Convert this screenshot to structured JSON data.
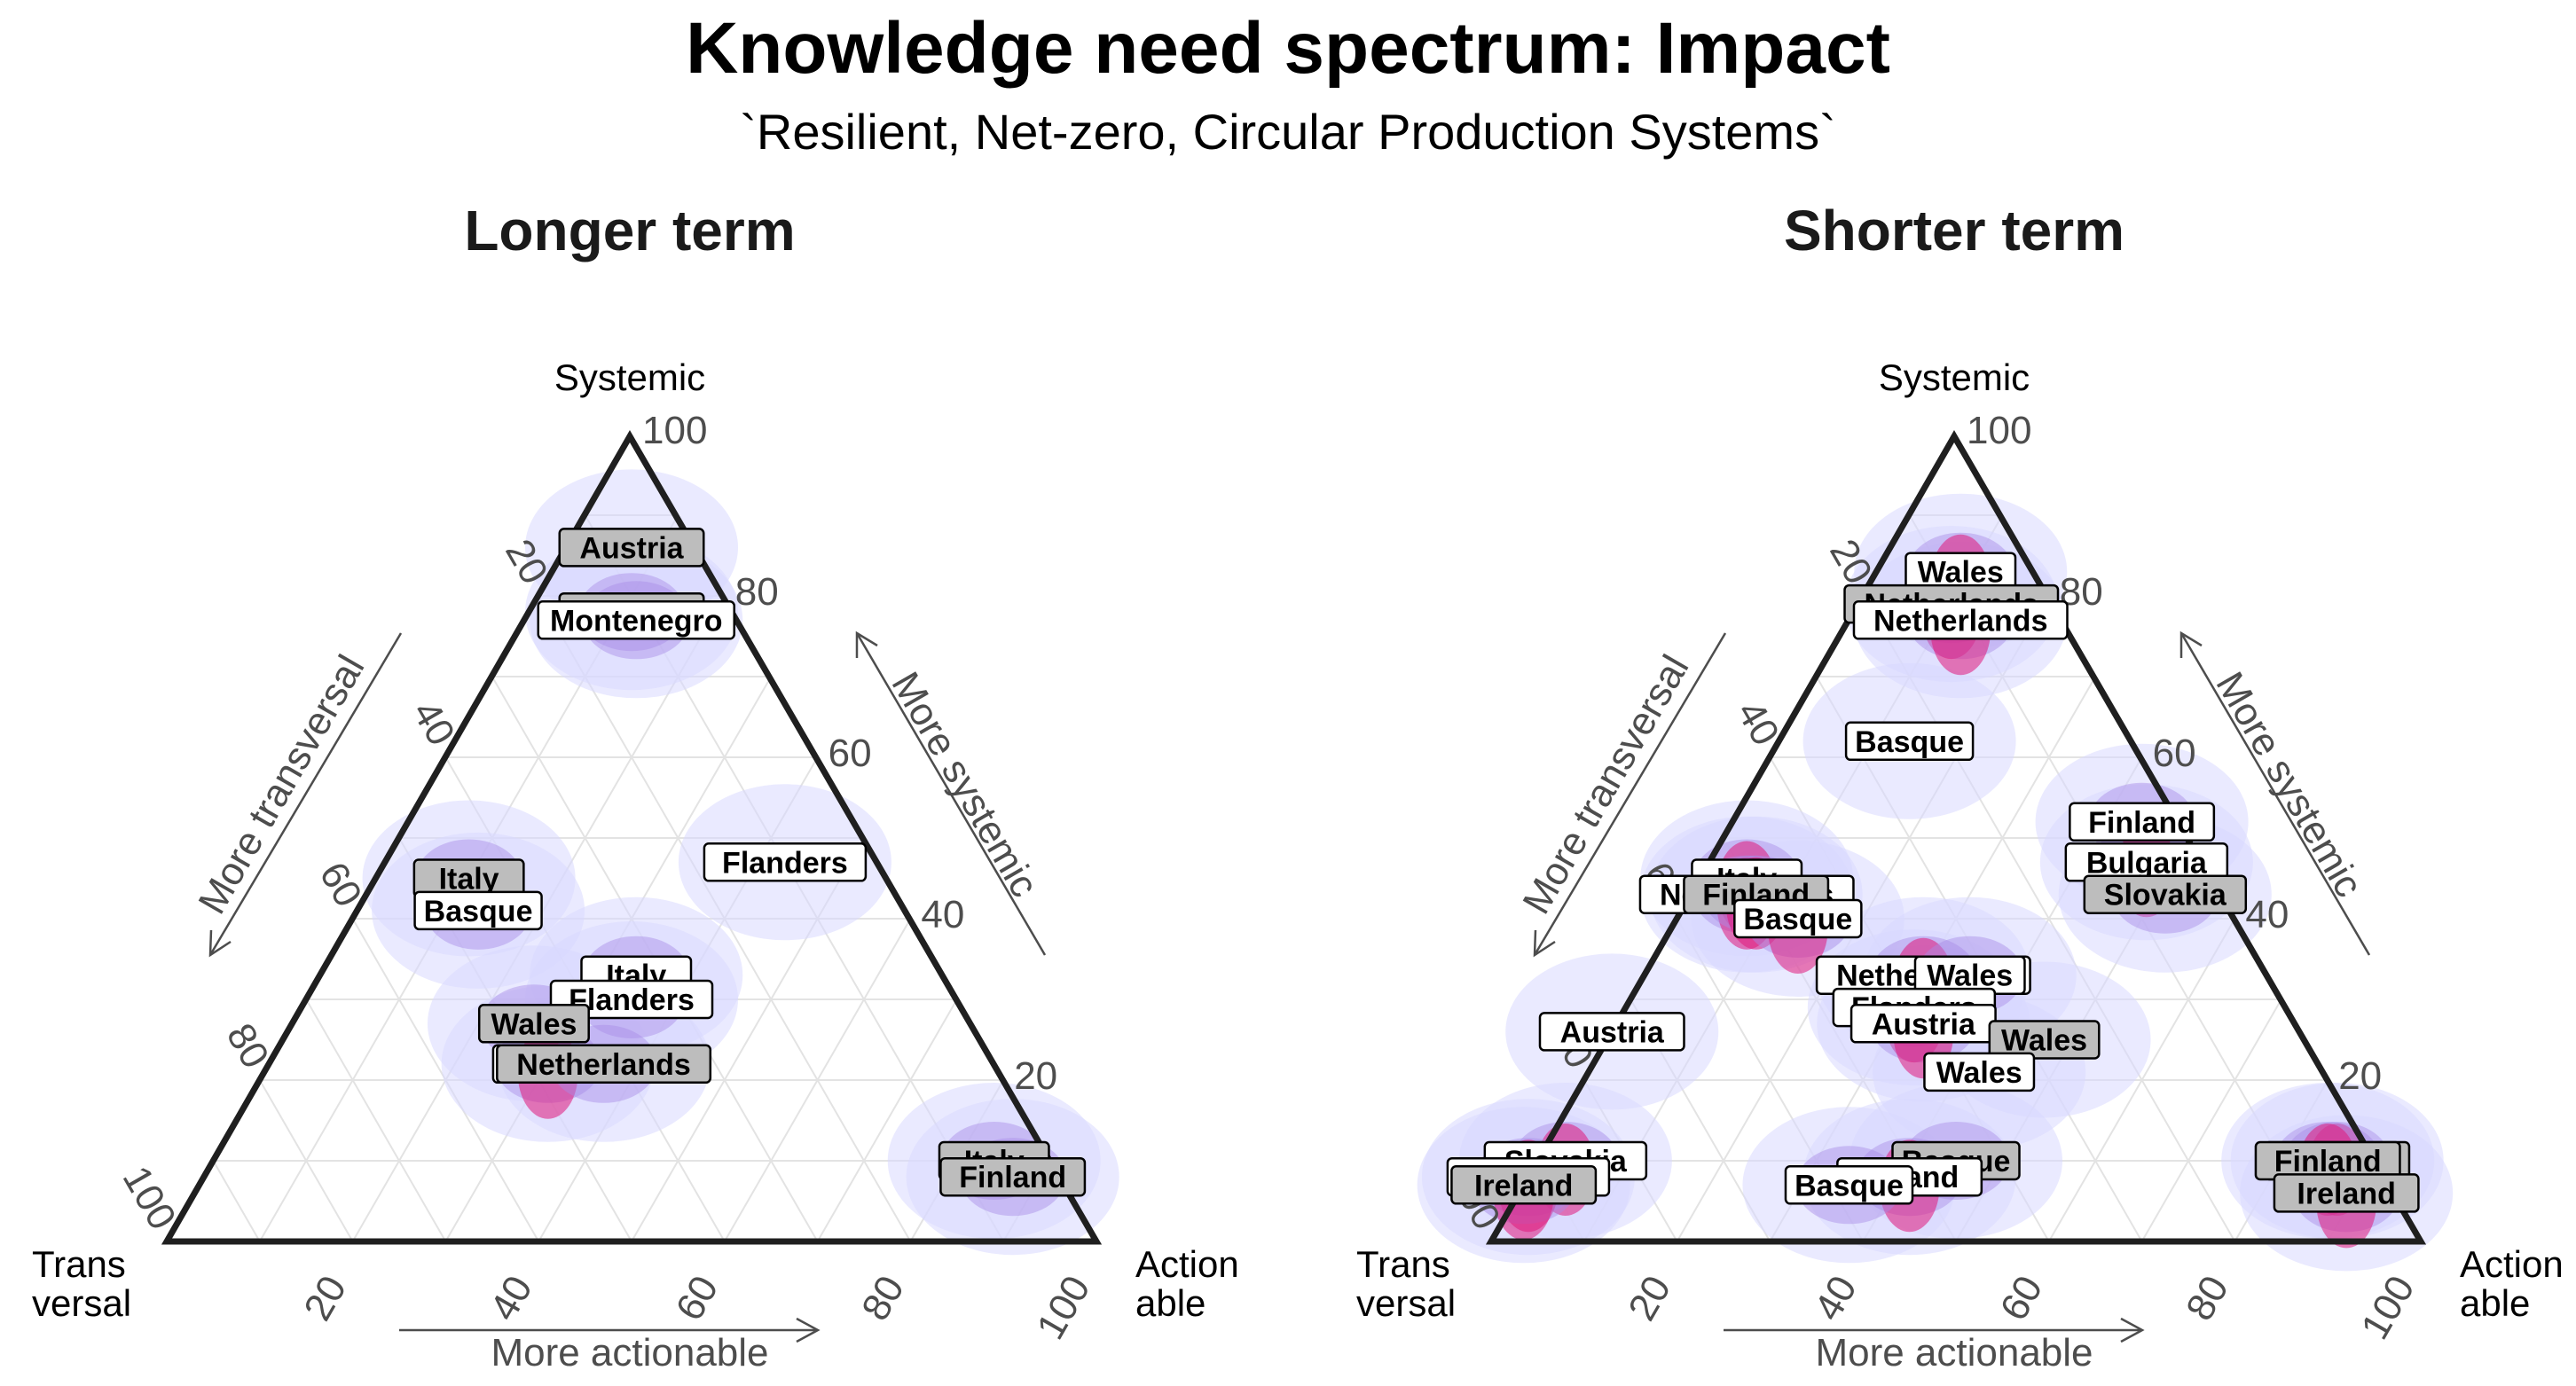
{
  "title": "Knowledge need spectrum: Impact",
  "subtitle": "`Resilient, Net-zero, Circular Production Systems`",
  "colors": {
    "frame": "#1f1f1f",
    "grid": "#e3e3e3",
    "density_low": "#d9d9ff",
    "density_mid": "#a98be6",
    "density_high": "#e0177a",
    "label_fill_light": "#ffffff",
    "label_fill_dark": "#bdbdbd"
  },
  "chart_data": [
    {
      "type": "scatter",
      "subtype": "ternary",
      "title": "Longer term",
      "axes": {
        "top": "Systemic",
        "left": [
          "Trans",
          "versal"
        ],
        "right": [
          "Action",
          "able"
        ],
        "left_arrow": "More transversal",
        "right_arrow": "More systemic",
        "bottom_arrow": "More actionable",
        "ticks": [
          "20",
          "40",
          "60",
          "80",
          "100"
        ]
      },
      "density": true,
      "points": [
        {
          "label": "Austria",
          "systemic": 86,
          "actionable": 7,
          "shade": "dark"
        },
        {
          "label": "Austria",
          "systemic": 78,
          "actionable": 11,
          "shade": "dark"
        },
        {
          "label": "Montenegro",
          "systemic": 77,
          "actionable": 12,
          "shade": "light"
        },
        {
          "label": "Flanders",
          "systemic": 47,
          "actionable": 43,
          "shade": "light"
        },
        {
          "label": "Italy",
          "systemic": 45,
          "actionable": 10,
          "shade": "dark"
        },
        {
          "label": "Basque",
          "systemic": 41,
          "actionable": 13,
          "shade": "light"
        },
        {
          "label": "Italy",
          "systemic": 33,
          "actionable": 34,
          "shade": "light"
        },
        {
          "label": "Flanders",
          "systemic": 30,
          "actionable": 35,
          "shade": "light"
        },
        {
          "label": "Wales",
          "systemic": 27,
          "actionable": 26,
          "shade": "dark"
        },
        {
          "label": "Wales",
          "systemic": 22,
          "actionable": 30,
          "shade": "light"
        },
        {
          "label": "Netherlands",
          "systemic": 22,
          "actionable": 36,
          "shade": "dark"
        },
        {
          "label": "Italy",
          "systemic": 10,
          "actionable": 84,
          "shade": "dark"
        },
        {
          "label": "Finland",
          "systemic": 8,
          "actionable": 87,
          "shade": "dark"
        }
      ]
    },
    {
      "type": "scatter",
      "subtype": "ternary",
      "title": "Shorter term",
      "axes": {
        "top": "Systemic",
        "left": [
          "Trans",
          "versal"
        ],
        "right": [
          "Action",
          "able"
        ],
        "left_arrow": "More transversal",
        "right_arrow": "More systemic",
        "bottom_arrow": "More actionable",
        "ticks": [
          "20",
          "40",
          "60",
          "80",
          "100"
        ]
      },
      "density": true,
      "points": [
        {
          "label": "Wales",
          "systemic": 83,
          "actionable": 9,
          "shade": "light"
        },
        {
          "label": "Netherlands",
          "systemic": 79,
          "actionable": 10,
          "shade": "dark"
        },
        {
          "label": "Netherlands",
          "systemic": 77,
          "actionable": 12,
          "shade": "light"
        },
        {
          "label": "Basque",
          "systemic": 62,
          "actionable": 14,
          "shade": "light"
        },
        {
          "label": "Finland",
          "systemic": 52,
          "actionable": 44,
          "shade": "light"
        },
        {
          "label": "Bulgaria",
          "systemic": 47,
          "actionable": 47,
          "shade": "light"
        },
        {
          "label": "Slovakia",
          "systemic": 43,
          "actionable": 51,
          "shade": "dark"
        },
        {
          "label": "Italy",
          "systemic": 45,
          "actionable": 5,
          "shade": "light"
        },
        {
          "label": "Netherlands",
          "systemic": 43,
          "actionable": 6,
          "shade": "light"
        },
        {
          "label": "Finland",
          "systemic": 43,
          "actionable": 7,
          "shade": "dark"
        },
        {
          "label": "Basque",
          "systemic": 40,
          "actionable": 13,
          "shade": "light"
        },
        {
          "label": "Netherlands",
          "systemic": 33,
          "actionable": 30,
          "shade": "light"
        },
        {
          "label": "Wales",
          "systemic": 33,
          "actionable": 35,
          "shade": "light"
        },
        {
          "label": "Flanders",
          "systemic": 29,
          "actionable": 31,
          "shade": "light"
        },
        {
          "label": "Austria",
          "systemic": 27,
          "actionable": 33,
          "shade": "light"
        },
        {
          "label": "Austria",
          "systemic": 26,
          "actionable": 0,
          "shade": "light"
        },
        {
          "label": "Wales",
          "systemic": 25,
          "actionable": 47,
          "shade": "dark"
        },
        {
          "label": "Wales",
          "systemic": 21,
          "actionable": 42,
          "shade": "light"
        },
        {
          "label": "Slovakia",
          "systemic": 10,
          "actionable": 3,
          "shade": "light"
        },
        {
          "label": "Slovakia",
          "systemic": 8,
          "actionable": 0,
          "shade": "light"
        },
        {
          "label": "Ireland",
          "systemic": 7,
          "actionable": 0,
          "shade": "dark"
        },
        {
          "label": "Basque",
          "systemic": 10,
          "actionable": 45,
          "shade": "dark"
        },
        {
          "label": "Ireland",
          "systemic": 8,
          "actionable": 41,
          "shade": "light"
        },
        {
          "label": "Basque",
          "systemic": 7,
          "actionable": 35,
          "shade": "light"
        },
        {
          "label": "Finland",
          "systemic": 10,
          "actionable": 86,
          "shade": "dark"
        },
        {
          "label": "Finland",
          "systemic": 10,
          "actionable": 85,
          "shade": "dark"
        },
        {
          "label": "Ireland",
          "systemic": 6,
          "actionable": 89,
          "shade": "dark"
        }
      ]
    }
  ]
}
